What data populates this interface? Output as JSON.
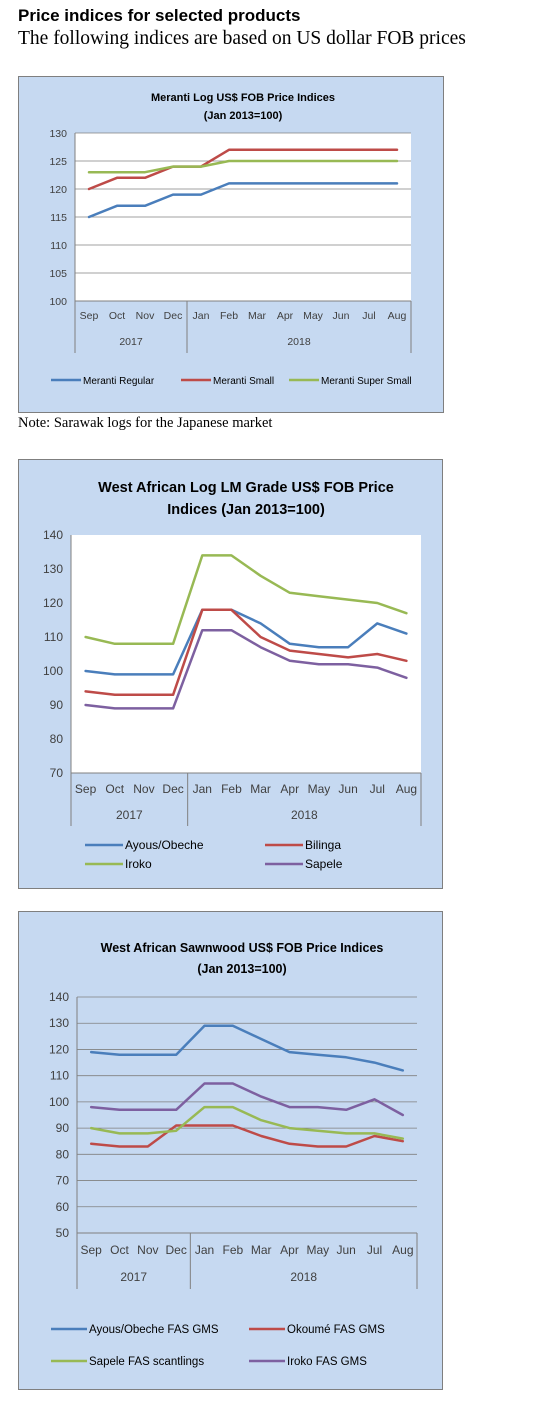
{
  "page": {
    "heading": "Price indices for selected products",
    "subheading": "The following indices are based on US dollar FOB prices",
    "note": "Note: Sarawak logs for the Japanese market"
  },
  "chart_data": [
    {
      "type": "line",
      "title": [
        "Meranti Log US$ FOB Price Indices",
        "(Jan 2013=100)"
      ],
      "categories": [
        "Sep",
        "Oct",
        "Nov",
        "Dec",
        "Jan",
        "Feb",
        "Mar",
        "Apr",
        "May",
        "Jun",
        "Jul",
        "Aug"
      ],
      "year_groups": [
        {
          "label": "2017",
          "start": 0,
          "count": 4
        },
        {
          "label": "2018",
          "start": 4,
          "count": 8
        }
      ],
      "ylim": [
        100,
        130
      ],
      "yticks": [
        100,
        105,
        110,
        115,
        120,
        125,
        130
      ],
      "grid": true,
      "legend_position": "bottom",
      "series": [
        {
          "name": "Meranti Regular",
          "color": "#4a7ebb",
          "values": [
            115,
            117,
            117,
            119,
            119,
            121,
            121,
            121,
            121,
            121,
            121,
            121
          ]
        },
        {
          "name": "Meranti Small",
          "color": "#be4b48",
          "values": [
            120,
            122,
            122,
            124,
            124,
            127,
            127,
            127,
            127,
            127,
            127,
            127
          ]
        },
        {
          "name": "Meranti Super Small",
          "color": "#98b954",
          "values": [
            123,
            123,
            123,
            124,
            124,
            125,
            125,
            125,
            125,
            125,
            125,
            125
          ]
        }
      ]
    },
    {
      "type": "line",
      "title": [
        "West African Log LM Grade US$ FOB Price",
        "Indices (Jan 2013=100)"
      ],
      "categories": [
        "Sep",
        "Oct",
        "Nov",
        "Dec",
        "Jan",
        "Feb",
        "Mar",
        "Apr",
        "May",
        "Jun",
        "Jul",
        "Aug"
      ],
      "year_groups": [
        {
          "label": "2017",
          "start": 0,
          "count": 4
        },
        {
          "label": "2018",
          "start": 4,
          "count": 8
        }
      ],
      "ylim": [
        70,
        140
      ],
      "yticks": [
        70,
        80,
        90,
        100,
        110,
        120,
        130,
        140
      ],
      "grid": false,
      "legend_position": "bottom",
      "series": [
        {
          "name": "Ayous/Obeche",
          "color": "#4a7ebb",
          "values": [
            100,
            99,
            99,
            99,
            118,
            118,
            114,
            108,
            107,
            107,
            114,
            111
          ]
        },
        {
          "name": "Bilinga",
          "color": "#be4b48",
          "values": [
            94,
            93,
            93,
            93,
            118,
            118,
            110,
            106,
            105,
            104,
            105,
            103
          ]
        },
        {
          "name": "Iroko",
          "color": "#98b954",
          "values": [
            110,
            108,
            108,
            108,
            134,
            134,
            128,
            123,
            122,
            121,
            120,
            117
          ]
        },
        {
          "name": "Sapele",
          "color": "#7d60a0",
          "values": [
            90,
            89,
            89,
            89,
            112,
            112,
            107,
            103,
            102,
            102,
            101,
            98
          ]
        }
      ]
    },
    {
      "type": "line",
      "title": [
        "West African Sawnwood US$ FOB Price Indices",
        "(Jan 2013=100)"
      ],
      "categories": [
        "Sep",
        "Oct",
        "Nov",
        "Dec",
        "Jan",
        "Feb",
        "Mar",
        "Apr",
        "May",
        "Jun",
        "Jul",
        "Aug"
      ],
      "year_groups": [
        {
          "label": "2017",
          "start": 0,
          "count": 4
        },
        {
          "label": "2018",
          "start": 4,
          "count": 8
        }
      ],
      "ylim": [
        50,
        140
      ],
      "yticks": [
        50,
        60,
        70,
        80,
        90,
        100,
        110,
        120,
        130,
        140
      ],
      "grid": true,
      "legend_position": "bottom",
      "series": [
        {
          "name": "Ayous/Obeche  FAS GMS",
          "color": "#4a7ebb",
          "values": [
            119,
            118,
            118,
            118,
            129,
            129,
            124,
            119,
            118,
            117,
            115,
            112
          ]
        },
        {
          "name": "Okoumé  FAS GMS",
          "color": "#be4b48",
          "values": [
            84,
            83,
            83,
            91,
            91,
            91,
            87,
            84,
            83,
            83,
            87,
            85
          ]
        },
        {
          "name": "Sapele FAS scantlings",
          "color": "#98b954",
          "values": [
            90,
            88,
            88,
            89,
            98,
            98,
            93,
            90,
            89,
            88,
            88,
            86
          ]
        },
        {
          "name": "Iroko FAS GMS",
          "color": "#7d60a0",
          "values": [
            98,
            97,
            97,
            97,
            107,
            107,
            102,
            98,
            98,
            97,
            101,
            95
          ]
        }
      ]
    }
  ]
}
